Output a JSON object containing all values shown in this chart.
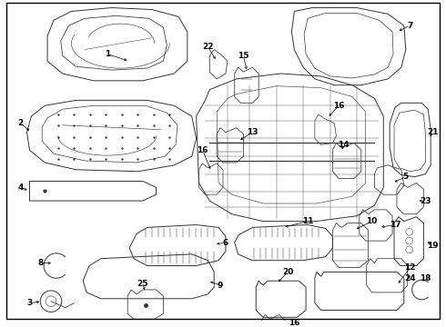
{
  "background_color": "#ffffff",
  "border_color": "#000000",
  "fig_width": 4.9,
  "fig_height": 3.6,
  "dpi": 100,
  "line_color": "#333333",
  "text_color": "#000000",
  "font_size": 6.5,
  "lw": 0.7
}
